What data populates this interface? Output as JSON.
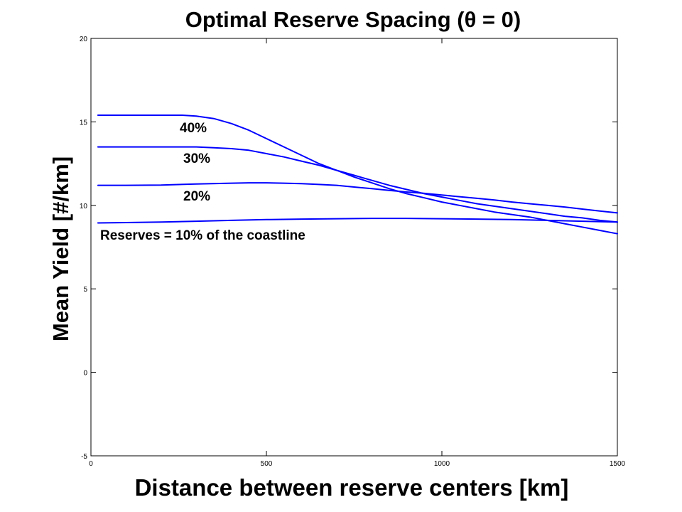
{
  "chart_data": {
    "type": "line",
    "title": "Optimal Reserve Spacing (θ = 0)",
    "xlabel": "Distance between reserve centers [km]",
    "ylabel": "Mean Yield [#/km]",
    "xlim": [
      0,
      1500
    ],
    "ylim": [
      -5,
      20
    ],
    "xticks": [
      0,
      500,
      1000,
      1500
    ],
    "yticks": [
      -5,
      0,
      5,
      10,
      15,
      20
    ],
    "grid": false,
    "line_color": "#0000ff",
    "series": [
      {
        "name": "40%",
        "x": [
          20,
          100,
          200,
          260,
          300,
          350,
          400,
          450,
          500,
          550,
          600,
          650,
          700,
          750,
          800,
          850,
          900,
          950,
          1000,
          1050,
          1100,
          1150,
          1200,
          1250,
          1300,
          1350,
          1400,
          1450,
          1500
        ],
        "y": [
          15.4,
          15.4,
          15.4,
          15.4,
          15.35,
          15.2,
          14.9,
          14.5,
          14.0,
          13.5,
          13.0,
          12.5,
          12.1,
          11.7,
          11.35,
          11.0,
          10.7,
          10.45,
          10.2,
          10.0,
          9.8,
          9.6,
          9.45,
          9.3,
          9.1,
          8.9,
          8.7,
          8.5,
          8.3
        ]
      },
      {
        "name": "30%",
        "x": [
          20,
          100,
          200,
          300,
          350,
          400,
          450,
          500,
          550,
          600,
          650,
          700,
          750,
          800,
          850,
          900,
          950,
          1000,
          1050,
          1100,
          1150,
          1200,
          1250,
          1300,
          1350,
          1400,
          1450,
          1500
        ],
        "y": [
          13.5,
          13.5,
          13.5,
          13.5,
          13.45,
          13.4,
          13.3,
          13.1,
          12.9,
          12.65,
          12.4,
          12.1,
          11.8,
          11.5,
          11.2,
          10.95,
          10.7,
          10.5,
          10.3,
          10.1,
          9.95,
          9.8,
          9.65,
          9.5,
          9.35,
          9.25,
          9.1,
          9.0
        ]
      },
      {
        "name": "20%",
        "x": [
          20,
          100,
          200,
          300,
          400,
          450,
          500,
          550,
          600,
          650,
          700,
          750,
          800,
          850,
          900,
          950,
          1000,
          1050,
          1100,
          1150,
          1200,
          1250,
          1300,
          1350,
          1400,
          1450,
          1500
        ],
        "y": [
          11.2,
          11.2,
          11.22,
          11.28,
          11.33,
          11.35,
          11.35,
          11.33,
          11.3,
          11.25,
          11.2,
          11.1,
          11.0,
          10.9,
          10.8,
          10.72,
          10.62,
          10.52,
          10.42,
          10.32,
          10.2,
          10.1,
          10.0,
          9.9,
          9.78,
          9.66,
          9.55
        ]
      },
      {
        "name": "Reserves = 10% of the coastline",
        "x": [
          20,
          100,
          200,
          300,
          400,
          500,
          600,
          700,
          800,
          900,
          1000,
          1100,
          1200,
          1300,
          1400,
          1500
        ],
        "y": [
          8.95,
          8.97,
          9.0,
          9.05,
          9.1,
          9.15,
          9.18,
          9.2,
          9.22,
          9.22,
          9.2,
          9.18,
          9.15,
          9.1,
          9.05,
          9.0
        ]
      }
    ]
  }
}
